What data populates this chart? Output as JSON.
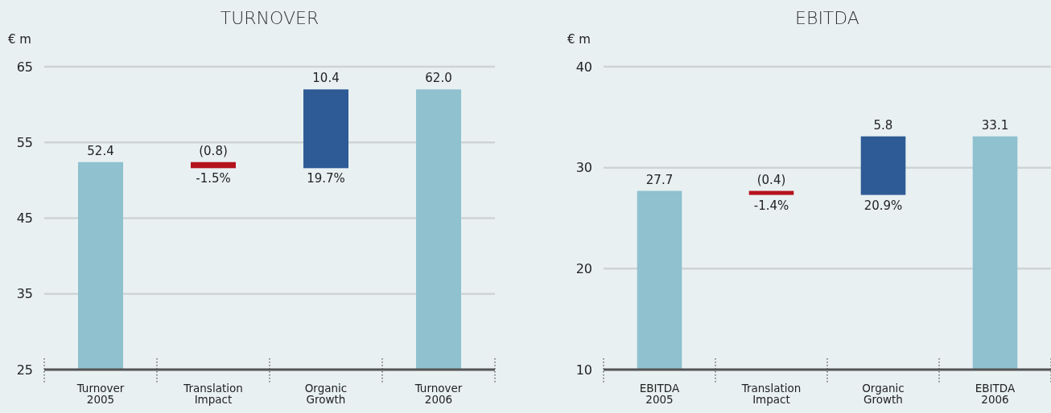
{
  "chart_data": [
    {
      "type": "bar",
      "title": "TURNOVER",
      "ylabel": "€ m",
      "categories": [
        "Turnover 2005",
        "Translation Impact",
        "Organic Growth",
        "Turnover 2006"
      ],
      "base": [
        25,
        52.4,
        51.6,
        25
      ],
      "values": [
        27.4,
        -0.8,
        10.4,
        37.0
      ],
      "colors": [
        "#8fc1cf",
        "#b5121b",
        "#2e5b96",
        "#8fc1cf"
      ],
      "value_labels": [
        "52.4",
        "(0.8)",
        "10.4",
        "62.0"
      ],
      "annotations": [
        {
          "text": "-1.5%",
          "x": "Translation Impact",
          "y": 51.6
        },
        {
          "text": "19.7%",
          "x": "Organic Growth",
          "y": 51.6
        }
      ],
      "ylim": [
        25,
        65
      ],
      "yticks": [
        25,
        35,
        45,
        55,
        65
      ],
      "grid": "y"
    },
    {
      "type": "bar",
      "title": "EBITDA",
      "ylabel": "€ m",
      "categories": [
        "EBITDA 2005",
        "Translation Impact",
        "Organic Growth",
        "EBITDA 2006"
      ],
      "base": [
        10,
        27.7,
        27.3,
        10
      ],
      "values": [
        17.7,
        -0.4,
        5.8,
        23.1
      ],
      "colors": [
        "#8fc1cf",
        "#b5121b",
        "#2e5b96",
        "#8fc1cf"
      ],
      "value_labels": [
        "27.7",
        "(0.4)",
        "5.8",
        "33.1"
      ],
      "annotations": [
        {
          "text": "-1.4%",
          "x": "Translation Impact",
          "y": 27.3
        },
        {
          "text": "20.9%",
          "x": "Organic Growth",
          "y": 27.3
        }
      ],
      "ylim": [
        10,
        40
      ],
      "yticks": [
        10,
        20,
        30,
        40
      ],
      "grid": "y"
    }
  ]
}
